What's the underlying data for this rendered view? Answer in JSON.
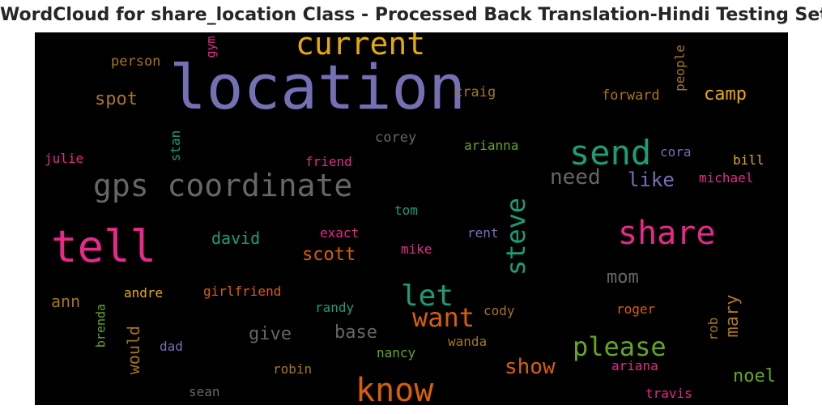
{
  "title": "WordCloud for share_location Class - Processed Back Translation-Hindi Testing Set",
  "words": [
    {
      "text": "location",
      "color": "#7570b3",
      "vertical": false
    },
    {
      "text": "current",
      "color": "#e6ab02",
      "vertical": false
    },
    {
      "text": "gps coordinate",
      "color": "#666666",
      "vertical": false
    },
    {
      "text": "tell",
      "color": "#e7298a",
      "vertical": false
    },
    {
      "text": "send",
      "color": "#1b9e77",
      "vertical": false
    },
    {
      "text": "share",
      "color": "#e7298a",
      "vertical": false
    },
    {
      "text": "know",
      "color": "#d95f02",
      "vertical": false
    },
    {
      "text": "steve",
      "color": "#1b9e77",
      "vertical": true
    },
    {
      "text": "let",
      "color": "#1b9e77",
      "vertical": false
    },
    {
      "text": "want",
      "color": "#d95f02",
      "vertical": false
    },
    {
      "text": "please",
      "color": "#66a61e",
      "vertical": false
    },
    {
      "text": "show",
      "color": "#d95f02",
      "vertical": false
    },
    {
      "text": "need",
      "color": "#666666",
      "vertical": false
    },
    {
      "text": "like",
      "color": "#7570b3",
      "vertical": false
    },
    {
      "text": "spot",
      "color": "#a6761d",
      "vertical": false
    },
    {
      "text": "camp",
      "color": "#e6ab02",
      "vertical": false
    },
    {
      "text": "david",
      "color": "#1b9e77",
      "vertical": false
    },
    {
      "text": "scott",
      "color": "#d95f02",
      "vertical": false
    },
    {
      "text": "give",
      "color": "#666666",
      "vertical": false
    },
    {
      "text": "base",
      "color": "#666666",
      "vertical": false
    },
    {
      "text": "mom",
      "color": "#666666",
      "vertical": false
    },
    {
      "text": "noel",
      "color": "#66a61e",
      "vertical": false
    },
    {
      "text": "mary",
      "color": "#a6761d",
      "vertical": true
    },
    {
      "text": "would",
      "color": "#a6761d",
      "vertical": true
    },
    {
      "text": "ann",
      "color": "#a6761d",
      "vertical": false
    },
    {
      "text": "person",
      "color": "#a6761d",
      "vertical": false
    },
    {
      "text": "gym",
      "color": "#e7298a",
      "vertical": true
    },
    {
      "text": "craig",
      "color": "#a6761d",
      "vertical": false
    },
    {
      "text": "forward",
      "color": "#a6761d",
      "vertical": false
    },
    {
      "text": "people",
      "color": "#a6761d",
      "vertical": true
    },
    {
      "text": "corey",
      "color": "#666666",
      "vertical": false
    },
    {
      "text": "stan",
      "color": "#1b9e77",
      "vertical": true
    },
    {
      "text": "julie",
      "color": "#e7298a",
      "vertical": false
    },
    {
      "text": "friend",
      "color": "#e7298a",
      "vertical": false
    },
    {
      "text": "arianna",
      "color": "#66a61e",
      "vertical": false
    },
    {
      "text": "cora",
      "color": "#7570b3",
      "vertical": false
    },
    {
      "text": "bill",
      "color": "#e6ab02",
      "vertical": false
    },
    {
      "text": "michael",
      "color": "#e7298a",
      "vertical": false
    },
    {
      "text": "tom",
      "color": "#1b9e77",
      "vertical": false
    },
    {
      "text": "exact",
      "color": "#e7298a",
      "vertical": false
    },
    {
      "text": "rent",
      "color": "#7570b3",
      "vertical": false
    },
    {
      "text": "mike",
      "color": "#e7298a",
      "vertical": false
    },
    {
      "text": "andre",
      "color": "#e6ab02",
      "vertical": false
    },
    {
      "text": "girlfriend",
      "color": "#d95f02",
      "vertical": false
    },
    {
      "text": "randy",
      "color": "#1b9e77",
      "vertical": false
    },
    {
      "text": "cody",
      "color": "#a6761d",
      "vertical": false
    },
    {
      "text": "roger",
      "color": "#d95f02",
      "vertical": false
    },
    {
      "text": "brenda",
      "color": "#66a61e",
      "vertical": true
    },
    {
      "text": "rob",
      "color": "#a6761d",
      "vertical": true
    },
    {
      "text": "dad",
      "color": "#7570b3",
      "vertical": false
    },
    {
      "text": "nancy",
      "color": "#66a61e",
      "vertical": false
    },
    {
      "text": "wanda",
      "color": "#a6761d",
      "vertical": false
    },
    {
      "text": "ariana",
      "color": "#e7298a",
      "vertical": false
    },
    {
      "text": "robin",
      "color": "#a6761d",
      "vertical": false
    },
    {
      "text": "sean",
      "color": "#666666",
      "vertical": false
    },
    {
      "text": "travis",
      "color": "#e7298a",
      "vertical": false
    }
  ]
}
